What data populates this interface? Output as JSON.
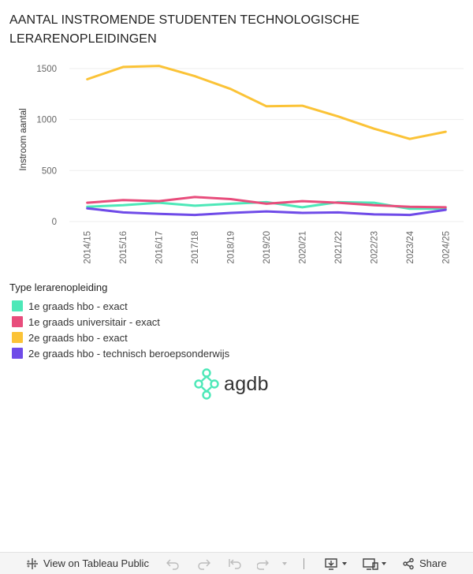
{
  "title": "AANTAL INSTROMENDE STUDENTEN TECHNOLOGISCHE LERARENOPLEIDINGEN",
  "chart_data": {
    "type": "line",
    "title": "AANTAL INSTROMENDE STUDENTEN TECHNOLOGISCHE LERARENOPLEIDINGEN",
    "xlabel": "",
    "ylabel": "Instroom aantal",
    "ylim": [
      0,
      1500
    ],
    "grid": true,
    "yticks": [
      "0",
      "500",
      "1000",
      "1500"
    ],
    "ytick_values": [
      0,
      500,
      1000,
      1500
    ],
    "categories": [
      "2014/15",
      "2015/16",
      "2016/17",
      "2017/18",
      "2018/19",
      "2019/20",
      "2020/21",
      "2021/22",
      "2022/23",
      "2023/24",
      "2024/25"
    ],
    "legend_title": "Type lerarenopleiding",
    "legend_position": "bottom-left",
    "series": [
      {
        "name": "1e graads hbo - exact",
        "color": "#4de8b8",
        "values": [
          145,
          160,
          185,
          155,
          175,
          190,
          140,
          190,
          185,
          125,
          125
        ]
      },
      {
        "name": "1e graads universitair - exact",
        "color": "#e84d7c",
        "values": [
          185,
          210,
          200,
          240,
          220,
          175,
          200,
          185,
          160,
          145,
          140
        ]
      },
      {
        "name": "2e graads hbo - exact",
        "color": "#fbc337",
        "values": [
          1395,
          1515,
          1525,
          1425,
          1300,
          1130,
          1135,
          1030,
          910,
          810,
          880
        ]
      },
      {
        "name": "2e graads hbo - technisch beroepsonderwijs",
        "color": "#6f4be8",
        "values": [
          130,
          90,
          75,
          65,
          85,
          100,
          85,
          90,
          70,
          65,
          115
        ]
      }
    ]
  },
  "branding": {
    "logo_text": "agdb",
    "logo_color": "#4de8b8"
  },
  "toolbar": {
    "view_label": "View on Tableau Public",
    "share_label": "Share"
  }
}
